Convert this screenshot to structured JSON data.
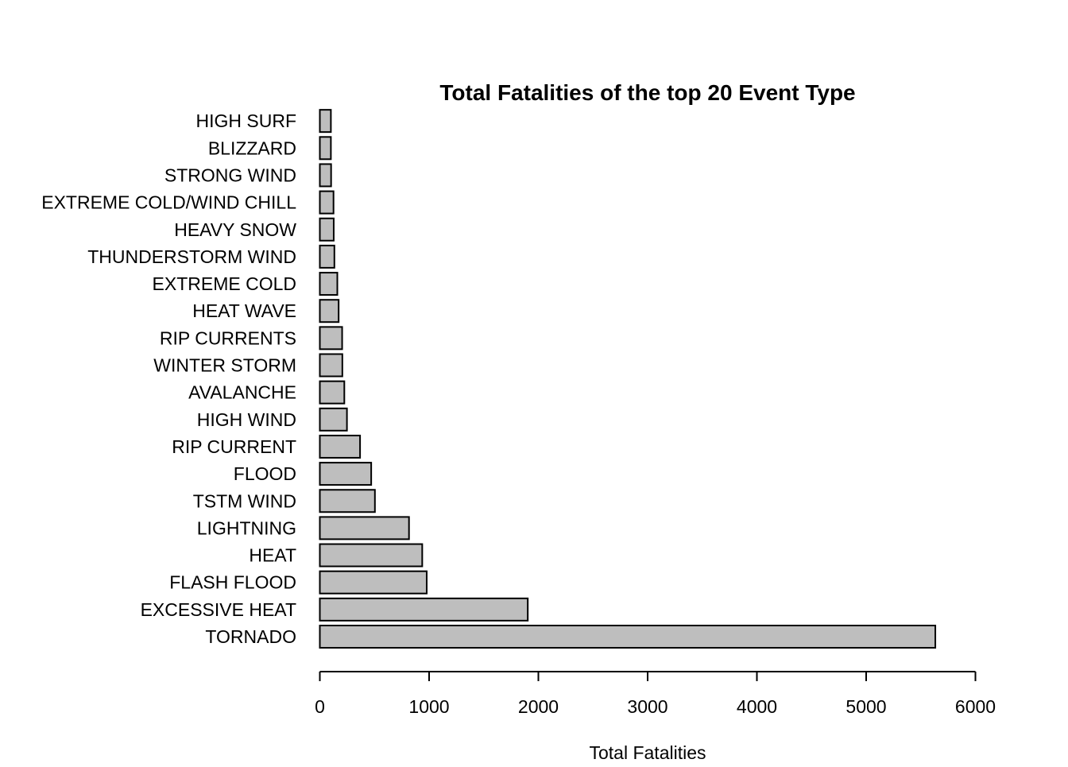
{
  "chart_data": {
    "type": "bar",
    "orientation": "horizontal",
    "title": "Total Fatalities of the top 20 Event Type",
    "xlabel": "Total Fatalities",
    "ylabel": "",
    "xlim": [
      0,
      6000
    ],
    "x_ticks": [
      0,
      1000,
      2000,
      3000,
      4000,
      5000,
      6000
    ],
    "x_tick_labels": [
      "0",
      "1000",
      "2000",
      "3000",
      "4000",
      "5000",
      "6000"
    ],
    "grid": false,
    "legend": "none",
    "bar_color": "#bebebe",
    "bar_border_color": "#000000",
    "categories": [
      "TORNADO",
      "EXCESSIVE HEAT",
      "FLASH FLOOD",
      "HEAT",
      "LIGHTNING",
      "TSTM WIND",
      "FLOOD",
      "RIP CURRENT",
      "HIGH WIND",
      "AVALANCHE",
      "WINTER STORM",
      "RIP CURRENTS",
      "HEAT WAVE",
      "EXTREME COLD",
      "THUNDERSTORM WIND",
      "HEAVY SNOW",
      "EXTREME COLD/WIND CHILL",
      "STRONG WIND",
      "BLIZZARD",
      "HIGH SURF"
    ],
    "values": [
      5633,
      1903,
      978,
      937,
      816,
      504,
      470,
      368,
      248,
      224,
      206,
      204,
      172,
      160,
      133,
      127,
      125,
      103,
      101,
      101
    ]
  }
}
